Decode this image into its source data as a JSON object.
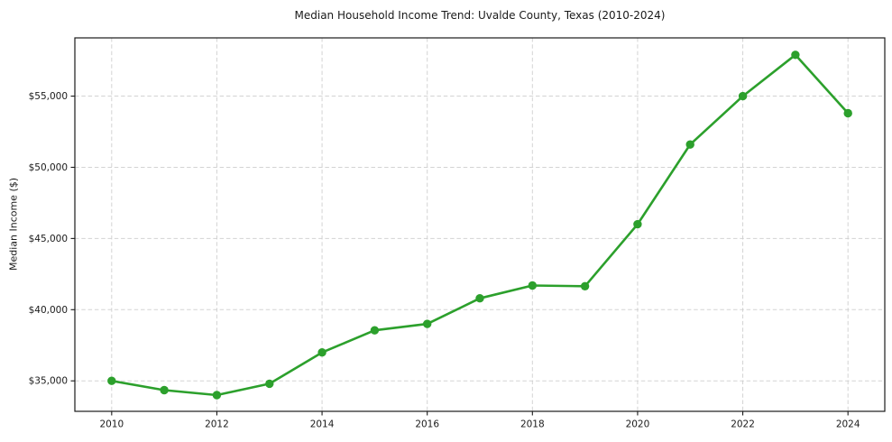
{
  "page": {
    "background": "#ffffff"
  },
  "chart_data": {
    "type": "line",
    "title": "Median Household Income Trend: Uvalde County, Texas (2010-2024)",
    "xlabel": "",
    "ylabel": "Median Income ($)",
    "x": [
      2010,
      2011,
      2012,
      2013,
      2014,
      2015,
      2016,
      2017,
      2018,
      2019,
      2020,
      2021,
      2022,
      2023,
      2024
    ],
    "series": [
      {
        "name": "Median Household Income",
        "values": [
          35000,
          34350,
          34000,
          34800,
          37000,
          38550,
          39000,
          40800,
          41700,
          41650,
          46000,
          51600,
          55000,
          57900,
          53800
        ]
      }
    ],
    "x_ticks": [
      2010,
      2012,
      2014,
      2016,
      2018,
      2020,
      2022,
      2024
    ],
    "x_tick_labels": [
      "2010",
      "2012",
      "2014",
      "2016",
      "2018",
      "2020",
      "2022",
      "2024"
    ],
    "y_ticks": [
      35000,
      40000,
      45000,
      50000,
      55000
    ],
    "y_tick_labels": [
      "$35,000",
      "$40,000",
      "$45,000",
      "$50,000",
      "$55,000"
    ],
    "xlim": [
      2009.3,
      2024.7
    ],
    "ylim": [
      32860,
      59090
    ],
    "grid": true,
    "grid_style": "dashed",
    "legend_position": "none",
    "line_color": "#2ca02c",
    "marker": "circle",
    "marker_color": "#2ca02c",
    "grid_color": "#cccccc",
    "spine_color": "#1a1a1a",
    "text_color": "#1a1a1a"
  }
}
